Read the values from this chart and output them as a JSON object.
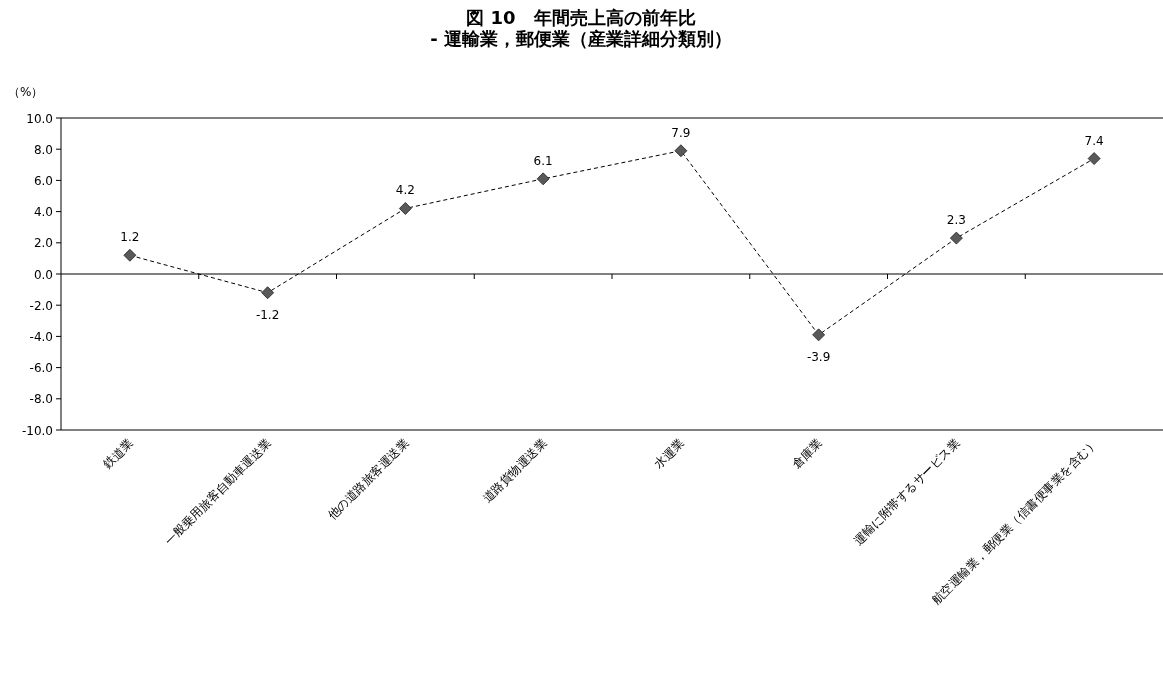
{
  "chart_data": {
    "type": "line",
    "title": "図 10　年間売上高の前年比\n- 運輸業，郵便業（産業詳細分類別）",
    "ylabel": "（%）",
    "categories": [
      "鉄道業",
      "一般乗用旅客自動車運送業",
      "他の道路旅客運送業",
      "道路貨物運送業",
      "水運業",
      "倉庫業",
      "運輸に附帯するサービス業",
      "航空運輸業，郵便業（信書便事業を含む）"
    ],
    "series": [
      {
        "color": "#595959",
        "values": [
          1.2,
          -1.2,
          4.2,
          6.1,
          7.9,
          -3.9,
          2.3,
          7.4
        ]
      }
    ],
    "ylim": [
      -10,
      10
    ],
    "yticks": [
      {
        "value": -10,
        "label": "-10.0"
      },
      {
        "value": -8,
        "label": "-8.0"
      },
      {
        "value": -6,
        "label": "-6.0"
      },
      {
        "value": -4,
        "label": "-4.0"
      },
      {
        "value": -2,
        "label": "-2.0"
      },
      {
        "value": 0,
        "label": "0.0"
      },
      {
        "value": 2,
        "label": "2.0"
      },
      {
        "value": 4,
        "label": "4.0"
      },
      {
        "value": 6,
        "label": "6.0"
      },
      {
        "value": 8,
        "label": "8.0"
      },
      {
        "value": 10,
        "label": "10.0"
      }
    ],
    "marker": "diamond",
    "line_style": "dashed",
    "data_labels": true
  }
}
